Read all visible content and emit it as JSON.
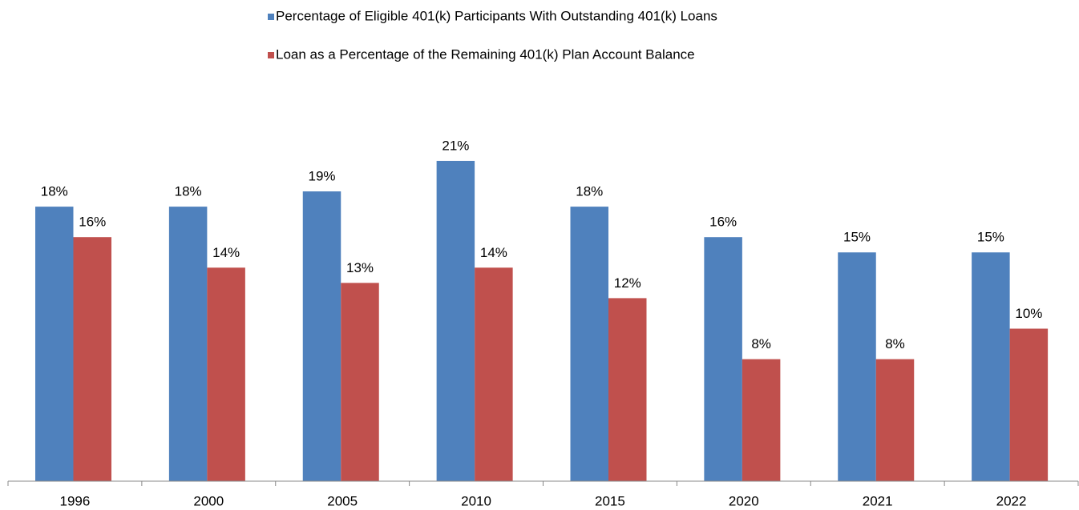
{
  "chart_data": {
    "type": "bar",
    "categories": [
      "1996",
      "2000",
      "2005",
      "2010",
      "2015",
      "2020",
      "2021",
      "2022"
    ],
    "series": [
      {
        "name": "Percentage of Eligible 401(k) Participants With Outstanding 401(k) Loans",
        "color": "#4f81bd",
        "values": [
          18,
          18,
          19,
          21,
          18,
          16,
          15,
          15
        ],
        "value_labels": [
          "18%",
          "18%",
          "19%",
          "21%",
          "18%",
          "16%",
          "15%",
          "15%"
        ]
      },
      {
        "name": "Loan as a Percentage of the Remaining 401(k) Plan Account Balance",
        "color": "#c0504d",
        "values": [
          16,
          14,
          13,
          14,
          12,
          8,
          8,
          10
        ],
        "value_labels": [
          "16%",
          "14%",
          "13%",
          "14%",
          "12%",
          "8%",
          "8%",
          "10%"
        ]
      }
    ]
  }
}
